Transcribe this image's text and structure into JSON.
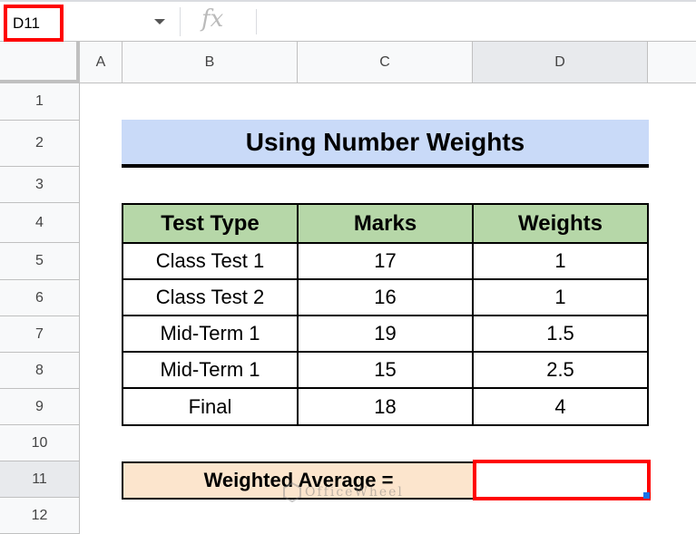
{
  "formula_bar": {
    "name_box": "D11",
    "fx_icon": "fx",
    "formula": ""
  },
  "columns": [
    "A",
    "B",
    "C",
    "D"
  ],
  "rows": [
    "1",
    "2",
    "3",
    "4",
    "5",
    "6",
    "7",
    "8",
    "9",
    "10",
    "11",
    "12"
  ],
  "title": "Using Number Weights",
  "table": {
    "headers": [
      "Test Type",
      "Marks",
      "Weights"
    ],
    "rows": [
      [
        "Class Test 1",
        "17",
        "1"
      ],
      [
        "Class Test 2",
        "16",
        "1"
      ],
      [
        "Mid-Term 1",
        "19",
        "1.5"
      ],
      [
        "Mid-Term 1",
        "15",
        "2.5"
      ],
      [
        "Final",
        "18",
        "4"
      ]
    ]
  },
  "result": {
    "label": "Weighted Average =",
    "value": ""
  },
  "watermark": "OfficeWheel",
  "colors": {
    "title_fill": "#c9daf8",
    "header_fill": "#b6d7a8",
    "result_fill": "#fce5cd",
    "highlight": "#ff0000"
  }
}
